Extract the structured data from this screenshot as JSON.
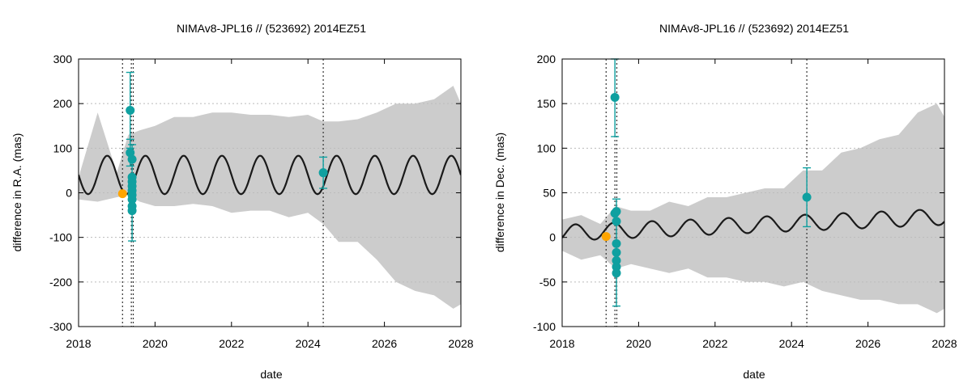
{
  "chart_data": [
    {
      "type": "line",
      "title": "NIMAv8-JPL16 // (523692) 2014EZ51",
      "xlabel": "date",
      "ylabel": "difference in R.A. (mas)",
      "xlim": [
        2018,
        2028
      ],
      "ylim": [
        -300,
        300
      ],
      "xticks": [
        "2018",
        "2020",
        "2022",
        "2024",
        "2026",
        "2028"
      ],
      "yticks": [
        "300",
        "200",
        "100",
        "0",
        "-100",
        "-200",
        "-300"
      ],
      "grid": "horizontal-dotted",
      "colors": {
        "band": "#cccccc",
        "line": "#1a1a1a",
        "points": "#0fa0a0",
        "ref": "#ffa500",
        "vline": "#333333"
      },
      "model": {
        "offset": 40,
        "amplitude": 43,
        "period_years": 1.0,
        "phase_year": 2018.75
      },
      "uncertainty_band": {
        "x": [
          2018.0,
          2018.5,
          2019.0,
          2019.3,
          2019.6,
          2020.0,
          2020.5,
          2021.0,
          2021.5,
          2022.0,
          2022.5,
          2023.0,
          2023.5,
          2024.0,
          2024.4,
          2024.8,
          2025.3,
          2025.8,
          2026.3,
          2026.8,
          2027.3,
          2027.8,
          2028.0
        ],
        "upper": [
          35,
          180,
          45,
          130,
          140,
          150,
          170,
          170,
          180,
          180,
          175,
          175,
          170,
          175,
          160,
          160,
          165,
          180,
          200,
          200,
          210,
          240,
          200
        ],
        "lower": [
          -15,
          -20,
          -10,
          -5,
          -20,
          -30,
          -30,
          -25,
          -30,
          -45,
          -40,
          -40,
          -55,
          -45,
          -70,
          -110,
          -110,
          -150,
          -200,
          -220,
          -230,
          -260,
          -250
        ]
      },
      "observations": [
        {
          "x": 2019.35,
          "y": 185,
          "err_low": 100,
          "err_high": 270
        },
        {
          "x": 2019.35,
          "y": 90,
          "err_low": 60,
          "err_high": 120
        },
        {
          "x": 2019.4,
          "y": 75
        },
        {
          "x": 2019.4,
          "y": 35
        },
        {
          "x": 2019.4,
          "y": 25
        },
        {
          "x": 2019.4,
          "y": 15
        },
        {
          "x": 2019.4,
          "y": 5
        },
        {
          "x": 2019.4,
          "y": -5
        },
        {
          "x": 2019.4,
          "y": -15
        },
        {
          "x": 2019.4,
          "y": -30
        },
        {
          "x": 2019.4,
          "y": -40
        },
        {
          "x": 2019.4,
          "y": 0,
          "err_low": -108,
          "err_high": 108
        },
        {
          "x": 2024.4,
          "y": 45,
          "err_low": 10,
          "err_high": 80
        }
      ],
      "reference_point": {
        "x": 2019.15,
        "y": -2
      },
      "vertical_lines": [
        2019.15,
        2019.38,
        2019.43,
        2024.4
      ]
    },
    {
      "type": "line",
      "title": "NIMAv8-JPL16 // (523692) 2014EZ51",
      "xlabel": "date",
      "ylabel": "difference in Dec. (mas)",
      "xlim": [
        2018,
        2028
      ],
      "ylim": [
        -100,
        200
      ],
      "xticks": [
        "2018",
        "2020",
        "2022",
        "2024",
        "2026",
        "2028"
      ],
      "yticks": [
        "200",
        "150",
        "100",
        "50",
        "0",
        "-50",
        "-100"
      ],
      "grid": "horizontal-dotted",
      "colors": {
        "band": "#cccccc",
        "line": "#1a1a1a",
        "points": "#0fa0a0",
        "ref": "#ffa500",
        "vline": "#333333"
      },
      "model": {
        "offset": 5,
        "amplitude": 9,
        "period_years": 1.0,
        "phase_year": 2018.35,
        "trend_per_year": 1.8
      },
      "uncertainty_band": {
        "x": [
          2018.0,
          2018.5,
          2019.0,
          2019.4,
          2019.8,
          2020.3,
          2020.8,
          2021.3,
          2021.8,
          2022.3,
          2022.8,
          2023.3,
          2023.8,
          2024.3,
          2024.8,
          2025.3,
          2025.8,
          2026.3,
          2026.8,
          2027.3,
          2027.8,
          2028.0
        ],
        "upper": [
          20,
          25,
          15,
          35,
          30,
          30,
          40,
          35,
          45,
          45,
          50,
          55,
          55,
          75,
          75,
          95,
          100,
          110,
          115,
          140,
          150,
          135
        ],
        "lower": [
          -15,
          -25,
          -20,
          -35,
          -30,
          -35,
          -40,
          -35,
          -45,
          -45,
          -50,
          -50,
          -55,
          -50,
          -60,
          -65,
          -70,
          -70,
          -75,
          -75,
          -85,
          -80
        ]
      },
      "observations": [
        {
          "x": 2019.38,
          "y": 157,
          "err_low": 113,
          "err_high": 200
        },
        {
          "x": 2019.38,
          "y": 27
        },
        {
          "x": 2019.42,
          "y": 29
        },
        {
          "x": 2019.42,
          "y": 18
        },
        {
          "x": 2019.42,
          "y": -7
        },
        {
          "x": 2019.42,
          "y": -17
        },
        {
          "x": 2019.42,
          "y": -26
        },
        {
          "x": 2019.42,
          "y": -33
        },
        {
          "x": 2019.42,
          "y": -40
        },
        {
          "x": 2019.42,
          "y": 0,
          "err_low": -77,
          "err_high": 43
        },
        {
          "x": 2024.4,
          "y": 45,
          "err_low": 12,
          "err_high": 78
        }
      ],
      "reference_point": {
        "x": 2019.15,
        "y": 1
      },
      "vertical_lines": [
        2019.15,
        2019.38,
        2019.43,
        2024.4
      ]
    }
  ]
}
